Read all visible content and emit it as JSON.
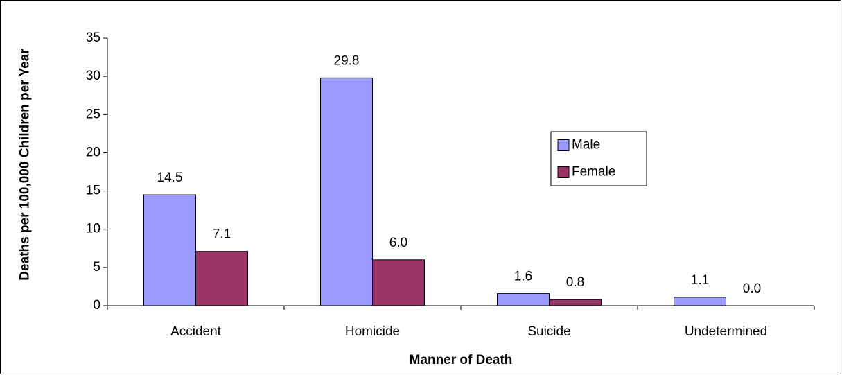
{
  "chart_data": {
    "type": "bar",
    "xlabel": "Manner of Death",
    "ylabel": "Deaths per 100,000 Children per Year",
    "categories": [
      "Accident",
      "Homicide",
      "Suicide",
      "Undetermined"
    ],
    "series": [
      {
        "name": "Male",
        "color": "#9999ff",
        "values": [
          14.5,
          29.8,
          1.6,
          1.1
        ],
        "value_labels": [
          "14.5",
          "29.8",
          "1.6",
          "1.1"
        ]
      },
      {
        "name": "Female",
        "color": "#993366",
        "values": [
          7.1,
          6.0,
          0.8,
          0.0
        ],
        "value_labels": [
          "7.1",
          "6.0",
          "0.8",
          "0.0"
        ]
      }
    ],
    "ylim": [
      0,
      35
    ],
    "yticks": [
      0,
      5,
      10,
      15,
      20,
      25,
      30,
      35
    ],
    "legend": "right"
  }
}
